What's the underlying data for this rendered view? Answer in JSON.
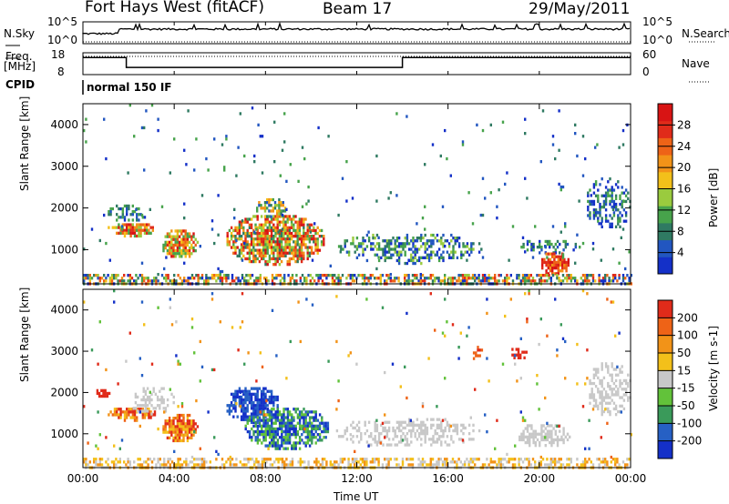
{
  "header": {
    "radar": "Fort Hays West (fitACF)",
    "beam": "Beam 17",
    "date": "29/May/2011"
  },
  "status_panels": {
    "nsky_label": "N.Sky",
    "nsearch_label": "N.Search",
    "freq_label_top": "Freq.",
    "freq_label_unit": "[MHz]",
    "nave_label": "Nave",
    "cpid_label": "CPID",
    "cpid_value": "normal 150 IF",
    "noise_ticks": [
      "10^5",
      "10^0"
    ],
    "freq_ticks": [
      "18",
      "8"
    ],
    "nave_ticks": [
      "60",
      "0"
    ],
    "frequency_mhz": {
      "segments": [
        {
          "start_hour": 0.0,
          "end_hour": 1.9,
          "value": 15.8
        },
        {
          "start_hour": 1.9,
          "end_hour": 14.0,
          "value": 11.3
        },
        {
          "start_hour": 14.0,
          "end_hour": 24.0,
          "value": 15.8
        }
      ]
    }
  },
  "chart_data": [
    {
      "type": "heatmap",
      "panel": "power",
      "ylabel": "Slant Range [km]",
      "x_range_hours": [
        0,
        24
      ],
      "y_range_km": [
        180,
        4500
      ],
      "y_ticks": [
        1000,
        2000,
        3000,
        4000
      ],
      "colorbar": {
        "label": "Power [dB]",
        "tick_labels": [
          "4",
          "8",
          "12",
          "16",
          "20",
          "24",
          "28"
        ],
        "colors": [
          "#1430c8",
          "#2256c0",
          "#2f7a62",
          "#47a34b",
          "#9acb3e",
          "#f3c01a",
          "#f29318",
          "#ee6317",
          "#e02b1a",
          "#d81414"
        ]
      },
      "blobs": [
        {
          "x0": 1.0,
          "x1": 3.2,
          "y0": 1350,
          "y1": 1700,
          "dense": 0.92,
          "c": [
            3,
            9
          ]
        },
        {
          "x0": 3.4,
          "x1": 5.0,
          "y0": 800,
          "y1": 1550,
          "dense": 0.95,
          "c": [
            3,
            9
          ]
        },
        {
          "x0": 6.2,
          "x1": 10.6,
          "y0": 650,
          "y1": 1900,
          "dense": 0.9,
          "c": [
            2,
            9
          ]
        },
        {
          "x0": 7.5,
          "x1": 9.0,
          "y0": 1800,
          "y1": 2300,
          "dense": 0.7,
          "c": [
            1,
            6
          ]
        },
        {
          "x0": 1.0,
          "x1": 2.8,
          "y0": 1700,
          "y1": 2150,
          "dense": 0.55,
          "c": [
            0,
            3
          ]
        },
        {
          "x0": 11.0,
          "x1": 17.5,
          "y0": 700,
          "y1": 1450,
          "dense": 0.55,
          "c": [
            0,
            4
          ]
        },
        {
          "x0": 19.0,
          "x1": 21.8,
          "y0": 950,
          "y1": 1300,
          "dense": 0.45,
          "c": [
            0,
            3
          ]
        },
        {
          "x0": 20.0,
          "x1": 21.3,
          "y0": 400,
          "y1": 1000,
          "dense": 0.92,
          "c": [
            6,
            9
          ]
        },
        {
          "x0": 22.0,
          "x1": 24.0,
          "y0": 1450,
          "y1": 2800,
          "dense": 0.45,
          "c": [
            0,
            3
          ]
        },
        {
          "x0": 0.0,
          "x1": 24.0,
          "y0": 180,
          "y1": 420,
          "dense": 0.55,
          "c": [
            0,
            8
          ]
        },
        {
          "x0": 0.0,
          "x1": 24.0,
          "y0": 420,
          "y1": 4500,
          "dense": 0.012,
          "c": [
            0,
            3
          ]
        }
      ]
    },
    {
      "type": "heatmap",
      "panel": "velocity",
      "xlabel": "Time UT",
      "ylabel": "Slant Range [km]",
      "x_range_hours": [
        0,
        24
      ],
      "y_range_km": [
        180,
        4500
      ],
      "y_ticks": [
        1000,
        2000,
        3000,
        4000
      ],
      "x_ticks": [
        "00:00",
        "04:00",
        "08:00",
        "12:00",
        "16:00",
        "20:00",
        "00:00"
      ],
      "colorbar": {
        "label": "Velocity [m s-1]",
        "tick_labels": [
          "200",
          "100",
          "50",
          "15",
          "-15",
          "-50",
          "-100",
          "-200"
        ],
        "colors": [
          "#1430c8",
          "#2660c4",
          "#3a9a5a",
          "#62c23a",
          "#c8c8c8",
          "#f3c01a",
          "#f29318",
          "#ee6317",
          "#e02b1a"
        ]
      },
      "blobs": [
        {
          "x0": 1.0,
          "x1": 3.2,
          "y0": 1350,
          "y1": 1700,
          "dense": 0.9,
          "c": [
            5,
            8
          ]
        },
        {
          "x0": 3.4,
          "x1": 5.0,
          "y0": 800,
          "y1": 1550,
          "dense": 0.95,
          "c": [
            5,
            8
          ]
        },
        {
          "x0": 6.2,
          "x1": 8.6,
          "y0": 1300,
          "y1": 2200,
          "dense": 0.9,
          "c": [
            0,
            1
          ]
        },
        {
          "x0": 7.0,
          "x1": 10.8,
          "y0": 650,
          "y1": 1700,
          "dense": 0.88,
          "c": [
            0,
            3
          ]
        },
        {
          "x0": 2.0,
          "x1": 4.0,
          "y0": 1500,
          "y1": 2200,
          "dense": 0.45,
          "c": [
            4,
            4
          ]
        },
        {
          "x0": 11.0,
          "x1": 17.5,
          "y0": 700,
          "y1": 1450,
          "dense": 0.5,
          "c": [
            4,
            4
          ]
        },
        {
          "x0": 19.0,
          "x1": 21.3,
          "y0": 700,
          "y1": 1300,
          "dense": 0.75,
          "c": [
            4,
            4
          ]
        },
        {
          "x0": 22.0,
          "x1": 24.0,
          "y0": 1450,
          "y1": 2800,
          "dense": 0.45,
          "c": [
            4,
            4
          ]
        },
        {
          "x0": 0.5,
          "x1": 1.2,
          "y0": 1900,
          "y1": 2150,
          "dense": 0.7,
          "c": [
            8,
            8
          ]
        },
        {
          "x0": 17.0,
          "x1": 17.5,
          "y0": 2800,
          "y1": 3200,
          "dense": 0.6,
          "c": [
            7,
            8
          ]
        },
        {
          "x0": 18.6,
          "x1": 19.5,
          "y0": 2850,
          "y1": 3150,
          "dense": 0.7,
          "c": [
            8,
            8
          ]
        },
        {
          "x0": 0.0,
          "x1": 24.0,
          "y0": 180,
          "y1": 420,
          "dense": 0.45,
          "c": [
            4,
            6
          ]
        },
        {
          "x0": 0.0,
          "x1": 24.0,
          "y0": 420,
          "y1": 4500,
          "dense": 0.012,
          "c": [
            0,
            8
          ]
        }
      ]
    }
  ]
}
